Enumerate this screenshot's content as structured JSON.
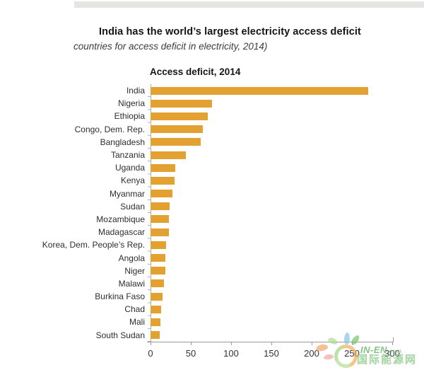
{
  "titles": {
    "main": "India has the world’s largest electricity access deficit",
    "subtitle": "countries for access deficit in electricity, 2014)",
    "chart_title": "Access deficit, 2014"
  },
  "chart_data": {
    "type": "bar",
    "orientation": "horizontal",
    "title": "Access deficit, 2014",
    "categories": [
      "India",
      "Nigeria",
      "Ethiopia",
      "Congo, Dem. Rep.",
      "Bangladesh",
      "Tanzania",
      "Uganda",
      "Kenya",
      "Myanmar",
      "Sudan",
      "Mozambique",
      "Madagascar",
      "Korea, Dem. People’s Rep.",
      "Angola",
      "Niger",
      "Malawi",
      "Burkina Faso",
      "Chad",
      "Mali",
      "South Sudan"
    ],
    "values": [
      270,
      76,
      71,
      65,
      62,
      44,
      31,
      30,
      27,
      24,
      23,
      23,
      19,
      18,
      18,
      17,
      15,
      13,
      12,
      11
    ],
    "xticks": [
      0,
      50,
      100,
      150,
      200,
      250,
      300
    ],
    "xlim": [
      0,
      300
    ],
    "grid": false,
    "legend": "none",
    "bar_color": "#E3A132",
    "axis_color": "#9a9a9a"
  },
  "watermark": {
    "brand": "IN-EN",
    "brand_suffix": ".com",
    "cn_text": "国际能源网",
    "logo": "leaf-ring-logo",
    "colors": {
      "orange": "#F2A64A",
      "blue": "#7DC8E8",
      "green": "#78C36E",
      "light_green": "#AAD78C",
      "pink": "#EE9696"
    }
  }
}
